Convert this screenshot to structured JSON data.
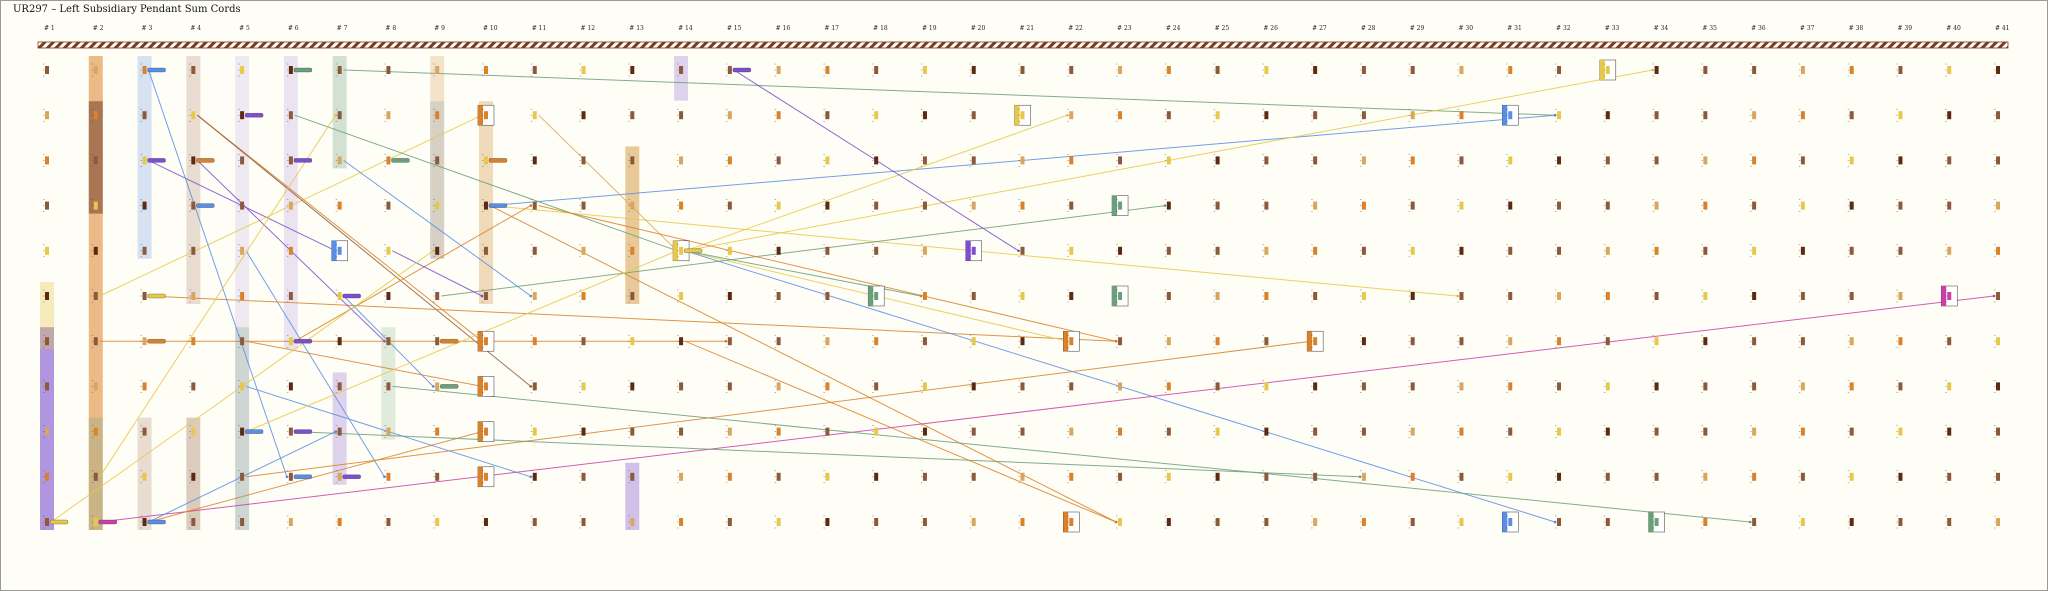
{
  "title": "UR297 – Left Subsidiary Pendant Sum Cords",
  "columns": [
    "# 1",
    "# 2",
    "# 3",
    "# 4",
    "# 5",
    "# 6",
    "# 7",
    "# 8",
    "# 9",
    "# 10",
    "# 11",
    "# 12",
    "# 13",
    "# 14",
    "# 15",
    "# 16",
    "# 17",
    "# 18",
    "# 19",
    "# 20",
    "# 21",
    "# 22",
    "# 23",
    "# 24",
    "# 25",
    "# 26",
    "# 27",
    "# 28",
    "# 29",
    "# 30",
    "# 31",
    "# 32",
    "# 33",
    "# 34",
    "# 35",
    "# 36",
    "# 37",
    "# 38",
    "# 39",
    "# 40",
    "# 41"
  ],
  "rows": 11,
  "colors": {
    "background": "#fffef6",
    "cord_band_dark": "#7a3b1e",
    "cord_band_light": "#ffffff",
    "orange": "#d9822b",
    "blue": "#5a8ee6",
    "green": "#6aa07a",
    "purple": "#7b4fd0",
    "yellow": "#e6c94a",
    "magenta": "#cc3fa8",
    "brown": "#8b5a3c",
    "tan": "#d8a65e"
  }
}
